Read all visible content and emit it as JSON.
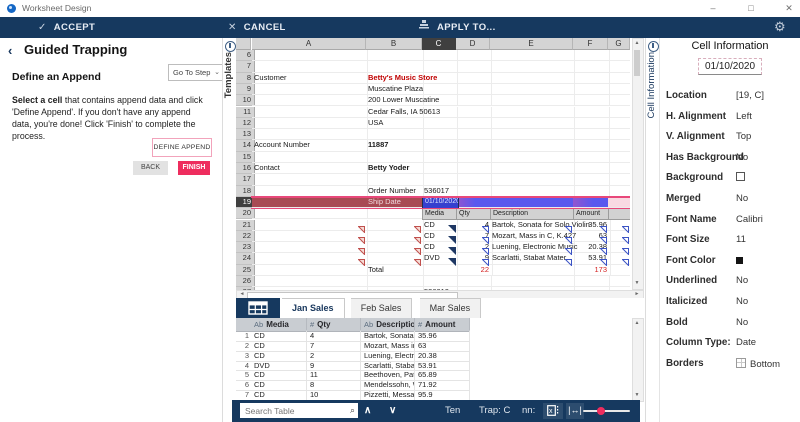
{
  "window": {
    "title": "Worksheet Design",
    "controls": {
      "minimize": "–",
      "maximize": "□",
      "close": "✕"
    }
  },
  "toolbar": {
    "accept": "ACCEPT",
    "cancel": "CANCEL",
    "apply_to": "APPLY TO..."
  },
  "left_panel": {
    "header": "Guided Trapping",
    "back_glyph": "‹",
    "step_title": "Define an Append",
    "goto_label": "Go To Step",
    "body_bold": "Select a cell",
    "body_rest": " that contains append data and click 'Define Append'. If you don't have any append data, you're done! Click 'Finish' to complete the process.",
    "define_append": "DEFINE APPEND",
    "back": "BACK",
    "finish": "FINISH"
  },
  "templates_tab": "Templates",
  "sheet": {
    "columns": [
      "A",
      "B",
      "C",
      "D",
      "E",
      "F",
      "G"
    ],
    "selected_column": "C",
    "row_start": 6,
    "row_end": 27,
    "selected_row": 19,
    "cells": [
      {
        "r": 8,
        "c": "A",
        "t": "Customer"
      },
      {
        "r": 8,
        "c": "B",
        "t": "Betty's Music Store",
        "cls": "redbold"
      },
      {
        "r": 9,
        "c": "B",
        "t": "Muscatine Plaza"
      },
      {
        "r": 10,
        "c": "B",
        "t": "200 Lower Muscatine"
      },
      {
        "r": 11,
        "c": "B",
        "t": "Cedar Falls, IA 50613"
      },
      {
        "r": 12,
        "c": "B",
        "t": "USA"
      },
      {
        "r": 14,
        "c": "A",
        "t": "Account Number"
      },
      {
        "r": 14,
        "c": "B",
        "t": "11887",
        "cls": "bold"
      },
      {
        "r": 16,
        "c": "A",
        "t": "Contact"
      },
      {
        "r": 16,
        "c": "B",
        "t": "Betty Yoder",
        "cls": "bold"
      },
      {
        "r": 18,
        "c": "B",
        "t": "Order Number"
      },
      {
        "r": 18,
        "c": "C",
        "t": "536017"
      },
      {
        "r": 19,
        "c": "B",
        "t": "Ship Date",
        "cls": "onred"
      },
      {
        "r": 19,
        "c": "C",
        "t": "01/10/2020",
        "cls": "selcell"
      },
      {
        "r": 20,
        "c": "C",
        "t": "Media",
        "cls": "thdr"
      },
      {
        "r": 20,
        "c": "D",
        "t": "Qty",
        "cls": "thdr"
      },
      {
        "r": 20,
        "c": "E",
        "t": "Description",
        "cls": "thdr"
      },
      {
        "r": 20,
        "c": "F",
        "t": "Amount",
        "cls": "thdr"
      },
      {
        "r": 20,
        "c": "G",
        "t": "",
        "cls": "thdr"
      },
      {
        "r": 21,
        "c": "C",
        "t": "CD"
      },
      {
        "r": 21,
        "c": "D",
        "t": "4",
        "cls": "num"
      },
      {
        "r": 21,
        "c": "E",
        "t": "Bartok, Sonata for Solo Violin"
      },
      {
        "r": 21,
        "c": "F",
        "t": "35.96",
        "cls": "num"
      },
      {
        "r": 22,
        "c": "C",
        "t": "CD"
      },
      {
        "r": 22,
        "c": "D",
        "t": "7",
        "cls": "num"
      },
      {
        "r": 22,
        "c": "E",
        "t": "Mozart, Mass in C, K.427"
      },
      {
        "r": 22,
        "c": "F",
        "t": "63",
        "cls": "num"
      },
      {
        "r": 23,
        "c": "C",
        "t": "CD"
      },
      {
        "r": 23,
        "c": "D",
        "t": "2",
        "cls": "num"
      },
      {
        "r": 23,
        "c": "E",
        "t": "Luening, Electronic Music"
      },
      {
        "r": 23,
        "c": "F",
        "t": "20.38",
        "cls": "num"
      },
      {
        "r": 24,
        "c": "C",
        "t": "DVD"
      },
      {
        "r": 24,
        "c": "D",
        "t": "9",
        "cls": "num"
      },
      {
        "r": 24,
        "c": "E",
        "t": "Scarlatti, Stabat Mater"
      },
      {
        "r": 24,
        "c": "F",
        "t": "53.91",
        "cls": "num"
      },
      {
        "r": 25,
        "c": "B",
        "t": "Total"
      },
      {
        "r": 25,
        "c": "D",
        "t": "22",
        "cls": "num red"
      },
      {
        "r": 25,
        "c": "F",
        "t": "173",
        "cls": "num red"
      },
      {
        "r": 27,
        "c": "C",
        "t": "536019"
      }
    ],
    "marker_rows": [
      21,
      22,
      23,
      24
    ],
    "markers": {
      "A": "red",
      "B": "red",
      "C": "navy",
      "D": "blue",
      "E": "blue",
      "F": "blue",
      "G": "blue"
    }
  },
  "sheet_tabs": {
    "items": [
      "Jan Sales",
      "Feb Sales",
      "Mar Sales"
    ],
    "active": 0
  },
  "bottom_table": {
    "headers": [
      {
        "prefix": "Ab",
        "label": "Media"
      },
      {
        "prefix": "#",
        "label": "Qty"
      },
      {
        "prefix": "Ab",
        "label": "Description"
      },
      {
        "prefix": "#",
        "label": "Amount"
      }
    ],
    "rows": [
      {
        "n": "1",
        "cells": [
          "CD",
          "4",
          "Bartok, Sonata fo...",
          "35.96"
        ]
      },
      {
        "n": "2",
        "cells": [
          "CD",
          "7",
          "Mozart, Mass in...",
          "63"
        ]
      },
      {
        "n": "3",
        "cells": [
          "CD",
          "2",
          "Luening, Electroni...",
          "20.38"
        ]
      },
      {
        "n": "4",
        "cells": [
          "DVD",
          "9",
          "Scarlatti, Stabat...",
          "53.91"
        ]
      },
      {
        "n": "5",
        "cells": [
          "CD",
          "11",
          "Beethoven, Pathe...",
          "65.89"
        ]
      },
      {
        "n": "6",
        "cells": [
          "CD",
          "8",
          "Mendelssohn, Wa...",
          "71.92"
        ]
      },
      {
        "n": "7",
        "cells": [
          "CD",
          "10",
          "Pizzetti, Messa di...",
          "95.9"
        ]
      }
    ]
  },
  "bottom_toolbar": {
    "search_placeholder": "Search Table",
    "labels": [
      "Ten",
      "Trap: C",
      "nn:"
    ]
  },
  "right_panel": {
    "tab": "Cell Information",
    "title": "Cell Information",
    "value": "01/10/2020",
    "fields": [
      {
        "label": "Location",
        "value": "[19, C]"
      },
      {
        "label": "H. Alignment",
        "value": "Left"
      },
      {
        "label": "V. Alignment",
        "value": "Top"
      },
      {
        "label": "Has Background",
        "value": "No"
      },
      {
        "label": "Background",
        "value": "",
        "icon": "checkbox-empty"
      },
      {
        "label": "Merged",
        "value": "No"
      },
      {
        "label": "Font Name",
        "value": "Calibri"
      },
      {
        "label": "Font Size",
        "value": "11"
      },
      {
        "label": "Font Color",
        "value": "",
        "icon": "black-square"
      },
      {
        "label": "Underlined",
        "value": "No"
      },
      {
        "label": "Italicized",
        "value": "No"
      },
      {
        "label": "Bold",
        "value": "No"
      },
      {
        "label": "Column Type:",
        "value": "Date"
      },
      {
        "label": "Borders",
        "value": "Bottom",
        "icon": "border-grid"
      }
    ]
  },
  "colors": {
    "navy": "#16395f",
    "accent_pink": "#ee2d5e",
    "selection_blue": "#3540cf",
    "row_overlay_red": "#a84a53",
    "row_overlay_blue": "#5a58ee",
    "row_line_pink": "#e8487a",
    "red_text": "#c00000",
    "header_gray": "#d4d4d4",
    "selected_header": "#3f3f3f"
  }
}
